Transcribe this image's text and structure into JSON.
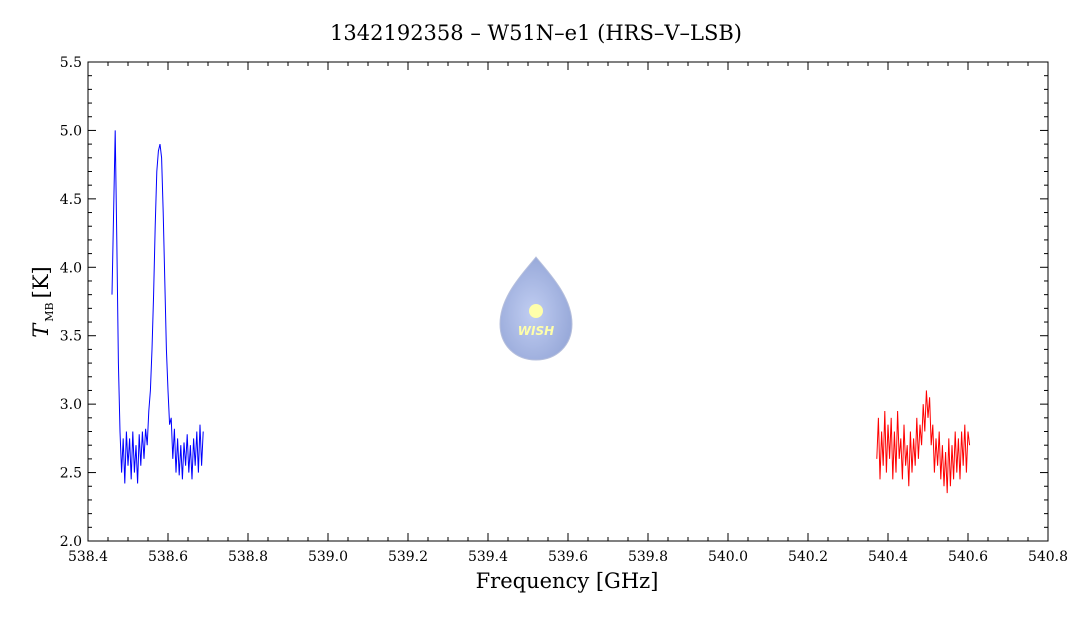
{
  "chart_data": {
    "type": "line",
    "title": "1342192358 – W51N–e1 (HRS–V–LSB)",
    "xlabel": "Frequency [GHz]",
    "ylabel": {
      "symbol": "T",
      "subscript": "MB",
      "unit": "[K]"
    },
    "logo_text": "WISH",
    "xlim": [
      538.4,
      540.8
    ],
    "ylim": [
      2.0,
      5.5
    ],
    "xticks": [
      538.4,
      538.6,
      538.8,
      {
        "value": 539,
        "label": "539.0"
      },
      539.2,
      539.4,
      539.6,
      539.8,
      {
        "value": 540,
        "label": "540.0"
      },
      540.2,
      540.4,
      540.6,
      540.8
    ],
    "yticks": [
      {
        "value": 2,
        "label": "2.0"
      },
      2.5,
      {
        "value": 3,
        "label": "3.0"
      },
      3.5,
      {
        "value": 4,
        "label": "4.0"
      },
      4.5,
      {
        "value": 5,
        "label": "5.0"
      },
      5.5
    ],
    "xminorticks": [
      538.45,
      538.5,
      538.55,
      538.65,
      538.7,
      538.75,
      538.85,
      538.9,
      538.95,
      539.05,
      539.1,
      539.15,
      539.25,
      539.3,
      539.35,
      539.45,
      539.5,
      539.55,
      539.65,
      539.7,
      539.75,
      539.85,
      539.9,
      539.95,
      540.05,
      540.1,
      540.15,
      540.25,
      540.3,
      540.35,
      540.45,
      540.5,
      540.55,
      540.65,
      540.7,
      540.75
    ],
    "yminorticks": [
      2.1,
      2.2,
      2.3,
      2.4,
      2.6,
      2.7,
      2.8,
      2.9,
      3.1,
      3.2,
      3.3,
      3.4,
      3.6,
      3.7,
      3.8,
      3.9,
      4.1,
      4.2,
      4.3,
      4.4,
      4.6,
      4.7,
      4.8,
      4.9,
      5.1,
      5.2,
      5.3,
      5.4
    ],
    "series": [
      {
        "color": "#0000ff",
        "x": [
          538.46,
          538.464,
          538.468,
          538.472,
          538.476,
          538.48,
          538.484,
          538.488,
          538.492,
          538.496,
          538.5,
          538.504,
          538.508,
          538.512,
          538.516,
          538.52,
          538.524,
          538.528,
          538.532,
          538.536,
          538.54,
          538.544,
          538.548,
          538.552,
          538.556,
          538.56,
          538.564,
          538.568,
          538.572,
          538.576,
          538.58,
          538.584,
          538.588,
          538.592,
          538.596,
          538.6,
          538.604,
          538.608,
          538.612,
          538.616,
          538.62,
          538.624,
          538.628,
          538.632,
          538.636,
          538.64,
          538.644,
          538.648,
          538.652,
          538.656,
          538.66,
          538.664,
          538.668,
          538.672,
          538.676,
          538.68,
          538.684,
          538.688
        ],
        "values": [
          3.8,
          4.4,
          5.0,
          4.2,
          3.3,
          2.8,
          2.5,
          2.75,
          2.42,
          2.8,
          2.55,
          2.75,
          2.45,
          2.8,
          2.5,
          2.7,
          2.42,
          2.78,
          2.55,
          2.8,
          2.6,
          2.82,
          2.7,
          2.95,
          3.1,
          3.4,
          3.8,
          4.3,
          4.7,
          4.85,
          4.9,
          4.8,
          4.4,
          3.9,
          3.4,
          3.1,
          2.85,
          2.9,
          2.6,
          2.82,
          2.5,
          2.75,
          2.48,
          2.7,
          2.45,
          2.72,
          2.55,
          2.78,
          2.5,
          2.7,
          2.45,
          2.75,
          2.55,
          2.8,
          2.5,
          2.85,
          2.55,
          2.8
        ]
      },
      {
        "color": "#ff0000",
        "x": [
          540.372,
          540.376,
          540.38,
          540.384,
          540.388,
          540.392,
          540.396,
          540.4,
          540.404,
          540.408,
          540.412,
          540.416,
          540.42,
          540.424,
          540.428,
          540.432,
          540.436,
          540.44,
          540.444,
          540.448,
          540.452,
          540.456,
          540.46,
          540.464,
          540.468,
          540.472,
          540.476,
          540.48,
          540.484,
          540.488,
          540.492,
          540.496,
          540.5,
          540.504,
          540.508,
          540.512,
          540.516,
          540.52,
          540.524,
          540.528,
          540.532,
          540.536,
          540.54,
          540.544,
          540.548,
          540.552,
          540.556,
          540.56,
          540.564,
          540.568,
          540.572,
          540.576,
          540.58,
          540.584,
          540.588,
          540.592,
          540.596,
          540.6,
          540.604
        ],
        "values": [
          2.6,
          2.9,
          2.45,
          2.8,
          2.55,
          2.95,
          2.5,
          2.85,
          2.6,
          2.9,
          2.45,
          2.8,
          2.5,
          2.95,
          2.6,
          2.75,
          2.45,
          2.85,
          2.55,
          2.7,
          2.4,
          2.8,
          2.5,
          2.75,
          2.55,
          2.9,
          2.6,
          2.85,
          2.7,
          3.0,
          2.8,
          3.1,
          2.9,
          3.05,
          2.7,
          2.85,
          2.5,
          2.75,
          2.55,
          2.8,
          2.45,
          2.7,
          2.4,
          2.65,
          2.35,
          2.75,
          2.4,
          2.7,
          2.45,
          2.8,
          2.5,
          2.75,
          2.45,
          2.8,
          2.55,
          2.85,
          2.5,
          2.8,
          2.7
        ]
      }
    ]
  }
}
